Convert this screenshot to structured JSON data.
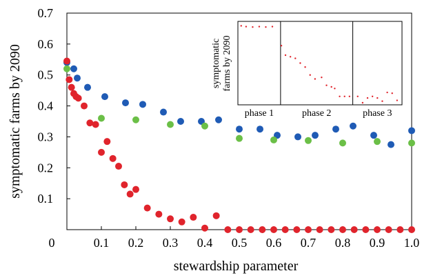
{
  "chart_data": {
    "type": "scatter",
    "xlabel": "stewardship parameter",
    "ylabel": "symptomatic farms by 2090",
    "xlim": [
      0,
      1.0
    ],
    "ylim": [
      0,
      0.7
    ],
    "x_ticks": [
      "0",
      "0.1",
      "0.2",
      "0.3",
      "0.4",
      "0.5",
      "0.6",
      "0.7",
      "0.8",
      "0.9",
      "1.0"
    ],
    "y_ticks": [
      "0.1",
      "0.2",
      "0.3",
      "0.4",
      "0.5",
      "0.6",
      "0.7"
    ],
    "series": [
      {
        "color": "#1f5bb5",
        "points": [
          [
            0.0,
            0.54
          ],
          [
            0.02,
            0.52
          ],
          [
            0.03,
            0.49
          ],
          [
            0.06,
            0.46
          ],
          [
            0.11,
            0.43
          ],
          [
            0.17,
            0.41
          ],
          [
            0.22,
            0.405
          ],
          [
            0.28,
            0.38
          ],
          [
            0.33,
            0.35
          ],
          [
            0.39,
            0.35
          ],
          [
            0.44,
            0.355
          ],
          [
            0.5,
            0.325
          ],
          [
            0.56,
            0.325
          ],
          [
            0.61,
            0.305
          ],
          [
            0.67,
            0.3
          ],
          [
            0.72,
            0.305
          ],
          [
            0.78,
            0.325
          ],
          [
            0.83,
            0.335
          ],
          [
            0.89,
            0.305
          ],
          [
            0.94,
            0.275
          ],
          [
            1.0,
            0.32
          ]
        ]
      },
      {
        "color": "#6bbf47",
        "points": [
          [
            0.0,
            0.52
          ],
          [
            0.1,
            0.36
          ],
          [
            0.2,
            0.355
          ],
          [
            0.3,
            0.34
          ],
          [
            0.4,
            0.335
          ],
          [
            0.5,
            0.295
          ],
          [
            0.6,
            0.29
          ],
          [
            0.7,
            0.288
          ],
          [
            0.8,
            0.28
          ],
          [
            0.9,
            0.285
          ],
          [
            1.0,
            0.28
          ]
        ]
      },
      {
        "color": "#e0242c",
        "points": [
          [
            0.0,
            0.545
          ],
          [
            0.0067,
            0.485
          ],
          [
            0.0133,
            0.46
          ],
          [
            0.02,
            0.44
          ],
          [
            0.0267,
            0.43
          ],
          [
            0.0333,
            0.425
          ],
          [
            0.05,
            0.4
          ],
          [
            0.0667,
            0.345
          ],
          [
            0.0833,
            0.34
          ],
          [
            0.1,
            0.25
          ],
          [
            0.1167,
            0.285
          ],
          [
            0.1333,
            0.23
          ],
          [
            0.15,
            0.205
          ],
          [
            0.1667,
            0.145
          ],
          [
            0.1833,
            0.115
          ],
          [
            0.2,
            0.13
          ],
          [
            0.2333,
            0.07
          ],
          [
            0.2667,
            0.05
          ],
          [
            0.3,
            0.035
          ],
          [
            0.3333,
            0.025
          ],
          [
            0.3667,
            0.04
          ],
          [
            0.4,
            0.005
          ],
          [
            0.4333,
            0.045
          ],
          [
            0.4667,
            0.0
          ],
          [
            0.5,
            0.0
          ],
          [
            0.5333,
            0.0
          ],
          [
            0.5667,
            0.0
          ],
          [
            0.6,
            0.0
          ],
          [
            0.6333,
            0.0
          ],
          [
            0.6667,
            0.0
          ],
          [
            0.7,
            0.0
          ],
          [
            0.7333,
            0.0
          ],
          [
            0.7667,
            0.0
          ],
          [
            0.8,
            0.0
          ],
          [
            0.8333,
            0.0
          ],
          [
            0.8667,
            0.0
          ],
          [
            0.9,
            0.0
          ],
          [
            0.9333,
            0.0
          ],
          [
            0.9667,
            0.0
          ],
          [
            1.0,
            0.0
          ]
        ]
      }
    ],
    "inset": {
      "ylabel_lines": [
        "symptomatic",
        "farms by 2090"
      ],
      "phases": [
        "phase 1",
        "phase 2",
        "phase 3"
      ],
      "phase_boundaries": [
        0.26,
        0.7
      ],
      "color": "#e0242c",
      "points": [
        [
          0.02,
          0.97
        ],
        [
          0.05,
          0.96
        ],
        [
          0.09,
          0.955
        ],
        [
          0.13,
          0.96
        ],
        [
          0.17,
          0.955
        ],
        [
          0.21,
          0.96
        ],
        [
          0.265,
          0.72
        ],
        [
          0.29,
          0.6
        ],
        [
          0.32,
          0.58
        ],
        [
          0.35,
          0.56
        ],
        [
          0.38,
          0.5
        ],
        [
          0.41,
          0.45
        ],
        [
          0.44,
          0.35
        ],
        [
          0.47,
          0.3
        ],
        [
          0.51,
          0.32
        ],
        [
          0.54,
          0.22
        ],
        [
          0.57,
          0.2
        ],
        [
          0.59,
          0.18
        ],
        [
          0.62,
          0.08
        ],
        [
          0.65,
          0.08
        ],
        [
          0.68,
          0.08
        ],
        [
          0.73,
          0.08
        ],
        [
          0.76,
          0.0
        ],
        [
          0.79,
          0.06
        ],
        [
          0.82,
          0.08
        ],
        [
          0.85,
          0.06
        ],
        [
          0.88,
          0.02
        ],
        [
          0.91,
          0.13
        ],
        [
          0.94,
          0.12
        ],
        [
          0.97,
          0.03
        ]
      ]
    }
  }
}
